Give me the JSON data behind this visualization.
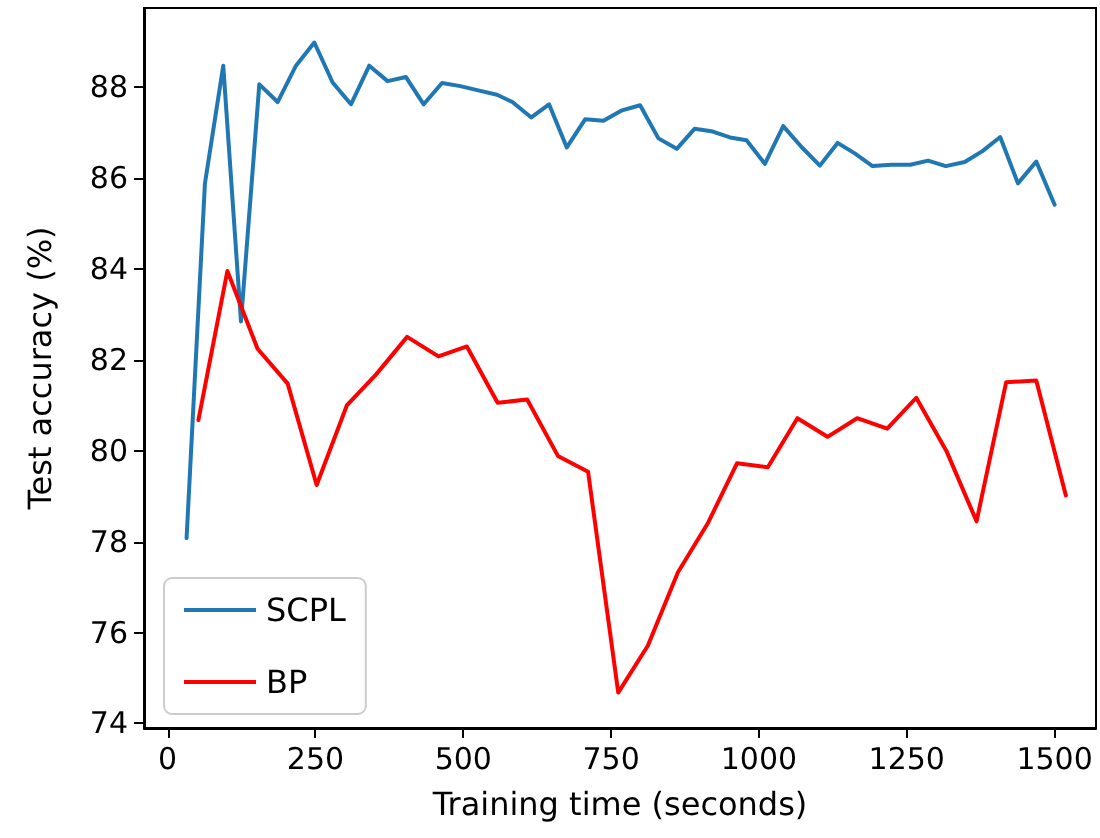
{
  "chart_data": {
    "type": "line",
    "xlabel": "Training time (seconds)",
    "ylabel": "Test accuracy (%)",
    "xlim": [
      -40,
      1570
    ],
    "xticks": [
      0,
      250,
      500,
      750,
      1000,
      1250,
      1500
    ],
    "ylim": [
      73.9,
      89.75
    ],
    "yticks": [
      74,
      76,
      78,
      80,
      82,
      84,
      86,
      88
    ],
    "grid": false,
    "legend": "bottom left",
    "marker": "none",
    "line_style": "solid",
    "series": [
      {
        "name": "SCPL",
        "color": "#1f77b4",
        "x": [
          32,
          63,
          94,
          124,
          155,
          186,
          217,
          248,
          279,
          310,
          341,
          372,
          403,
          433,
          464,
          495,
          527,
          557,
          583,
          615,
          645,
          675,
          706,
          737,
          767,
          799,
          830,
          861,
          891,
          922,
          951,
          979,
          1010,
          1041,
          1072,
          1103,
          1133,
          1162,
          1192,
          1224,
          1256,
          1286,
          1316,
          1348,
          1378,
          1408,
          1438,
          1469,
          1500
        ],
        "values": [
          78.08,
          85.88,
          88.48,
          82.85,
          88.07,
          87.68,
          88.48,
          88.99,
          88.11,
          87.63,
          88.48,
          88.14,
          88.23,
          87.63,
          88.1,
          88.03,
          87.93,
          87.84,
          87.68,
          87.34,
          87.63,
          86.68,
          87.3,
          87.27,
          87.49,
          87.61,
          86.88,
          86.65,
          87.09,
          87.03,
          86.9,
          86.84,
          86.32,
          87.15,
          86.69,
          86.28,
          86.78,
          86.55,
          86.27,
          86.3,
          86.3,
          86.39,
          86.27,
          86.36,
          86.6,
          86.91,
          85.89,
          86.37,
          85.42
        ]
      },
      {
        "name": "BP",
        "color": "#ff0000",
        "x": [
          52,
          101,
          152,
          203,
          252,
          303,
          353,
          405,
          458,
          506,
          558,
          608,
          660,
          711,
          762,
          812,
          863,
          914,
          963,
          1015,
          1065,
          1116,
          1166,
          1217,
          1266,
          1317,
          1368,
          1418,
          1469,
          1519
        ],
        "values": [
          80.68,
          83.96,
          82.25,
          81.48,
          79.25,
          81.0,
          81.69,
          82.51,
          82.08,
          82.3,
          81.06,
          81.13,
          79.89,
          79.54,
          74.68,
          75.71,
          77.33,
          78.42,
          79.73,
          79.64,
          80.72,
          80.31,
          80.72,
          80.49,
          81.17,
          80.0,
          78.45,
          81.51,
          81.55,
          79.02
        ]
      }
    ]
  }
}
